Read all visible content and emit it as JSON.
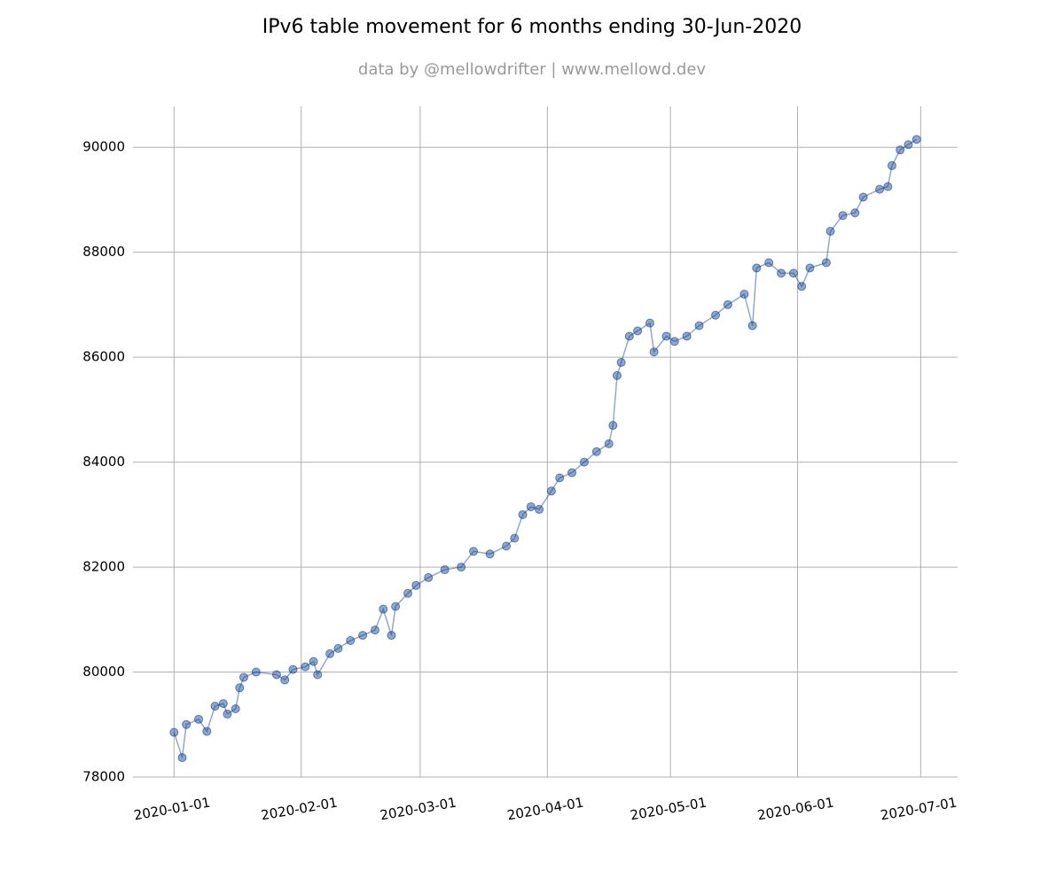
{
  "chart_data": {
    "type": "line",
    "title": "IPv6 table movement for 6 months ending 30-Jun-2020",
    "subtitle": "data by @mellowdrifter | www.mellowd.dev",
    "color": "#0b3d91",
    "grid": true,
    "markers": true,
    "x": [
      "2020-01-01",
      "2020-01-03",
      "2020-01-04",
      "2020-01-07",
      "2020-01-09",
      "2020-01-11",
      "2020-01-13",
      "2020-01-14",
      "2020-01-16",
      "2020-01-17",
      "2020-01-18",
      "2020-01-21",
      "2020-01-26",
      "2020-01-28",
      "2020-01-30",
      "2020-02-02",
      "2020-02-04",
      "2020-02-05",
      "2020-02-08",
      "2020-02-10",
      "2020-02-13",
      "2020-02-16",
      "2020-02-19",
      "2020-02-21",
      "2020-02-23",
      "2020-02-24",
      "2020-02-27",
      "2020-02-29",
      "2020-03-03",
      "2020-03-07",
      "2020-03-11",
      "2020-03-14",
      "2020-03-18",
      "2020-03-22",
      "2020-03-24",
      "2020-03-26",
      "2020-03-28",
      "2020-03-30",
      "2020-04-02",
      "2020-04-04",
      "2020-04-07",
      "2020-04-10",
      "2020-04-13",
      "2020-04-16",
      "2020-04-17",
      "2020-04-18",
      "2020-04-19",
      "2020-04-21",
      "2020-04-23",
      "2020-04-26",
      "2020-04-27",
      "2020-04-30",
      "2020-05-02",
      "2020-05-05",
      "2020-05-08",
      "2020-05-12",
      "2020-05-15",
      "2020-05-19",
      "2020-05-21",
      "2020-05-22",
      "2020-05-25",
      "2020-05-28",
      "2020-05-31",
      "2020-06-02",
      "2020-06-04",
      "2020-06-08",
      "2020-06-09",
      "2020-06-12",
      "2020-06-15",
      "2020-06-17",
      "2020-06-21",
      "2020-06-23",
      "2020-06-24",
      "2020-06-26",
      "2020-06-28",
      "2020-06-30"
    ],
    "values": [
      78850,
      78370,
      79000,
      79100,
      78870,
      79350,
      79400,
      79200,
      79300,
      79700,
      79900,
      80000,
      79950,
      79850,
      80050,
      80100,
      80200,
      79950,
      80350,
      80450,
      80600,
      80700,
      80800,
      81200,
      80700,
      81250,
      81500,
      81650,
      81800,
      81950,
      82000,
      82300,
      82250,
      82400,
      82550,
      83000,
      83150,
      83100,
      83450,
      83700,
      83800,
      84000,
      84200,
      84350,
      84700,
      85650,
      85900,
      86400,
      86500,
      86650,
      86100,
      86400,
      86300,
      86400,
      86600,
      86800,
      87000,
      87200,
      86600,
      87700,
      87800,
      87600,
      87600,
      87350,
      87700,
      87800,
      88400,
      88700,
      88750,
      89050,
      89200,
      89250,
      89650,
      89950,
      90050,
      90150
    ],
    "xlim": [
      "2019-12-22",
      "2020-07-10"
    ],
    "xticks": [
      "2020-01-01",
      "2020-02-01",
      "2020-03-01",
      "2020-04-01",
      "2020-05-01",
      "2020-06-01",
      "2020-07-01"
    ],
    "ylim": [
      78000,
      90780
    ],
    "yticks": [
      78000,
      80000,
      82000,
      84000,
      86000,
      88000,
      90000
    ]
  }
}
